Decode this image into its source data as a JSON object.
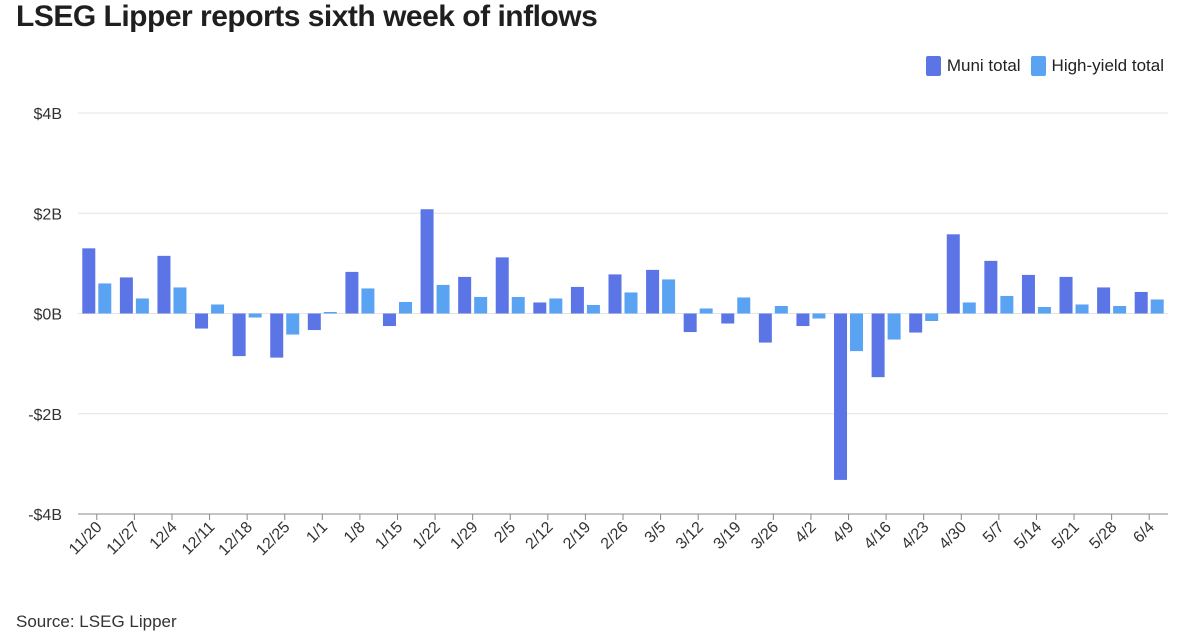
{
  "title": "LSEG Lipper reports sixth week of inflows",
  "source": "Source: LSEG Lipper",
  "colors": {
    "muni": "#5b74e6",
    "high_yield": "#5aa3f3",
    "grid": "#e4e4e4"
  },
  "chart_data": {
    "type": "bar",
    "title": "LSEG Lipper reports sixth week of inflows",
    "xlabel": "",
    "ylabel": "",
    "ylim": [
      -4,
      4
    ],
    "yticks": [
      4,
      2,
      0,
      -2,
      -4
    ],
    "ytick_labels": [
      "$4B",
      "$2B",
      "$0B",
      "-$2B",
      "-$4B"
    ],
    "grid": true,
    "legend_position": "top-right",
    "categories": [
      "11/20",
      "11/27",
      "12/4",
      "12/11",
      "12/18",
      "12/25",
      "1/1",
      "1/8",
      "1/15",
      "1/22",
      "1/29",
      "2/5",
      "2/12",
      "2/19",
      "2/26",
      "3/5",
      "3/12",
      "3/19",
      "3/26",
      "4/2",
      "4/9",
      "4/16",
      "4/23",
      "4/30",
      "5/7",
      "5/14",
      "5/21",
      "5/28",
      "6/4"
    ],
    "series": [
      {
        "name": "Muni total",
        "values": [
          1.3,
          0.72,
          1.15,
          -0.3,
          -0.85,
          -0.88,
          -0.33,
          0.83,
          -0.25,
          2.08,
          0.73,
          1.12,
          0.22,
          0.53,
          0.78,
          0.87,
          -0.37,
          -0.2,
          -0.58,
          -0.25,
          -3.32,
          -1.27,
          -0.38,
          1.58,
          1.05,
          0.77,
          0.73,
          0.52,
          0.43
        ]
      },
      {
        "name": "High-yield total",
        "values": [
          0.6,
          0.3,
          0.52,
          0.18,
          -0.08,
          -0.42,
          0.03,
          0.5,
          0.23,
          0.57,
          0.33,
          0.33,
          0.3,
          0.17,
          0.42,
          0.68,
          0.1,
          0.32,
          0.15,
          -0.1,
          -0.75,
          -0.52,
          -0.15,
          0.22,
          0.35,
          0.13,
          0.18,
          0.15,
          0.28
        ]
      }
    ]
  }
}
